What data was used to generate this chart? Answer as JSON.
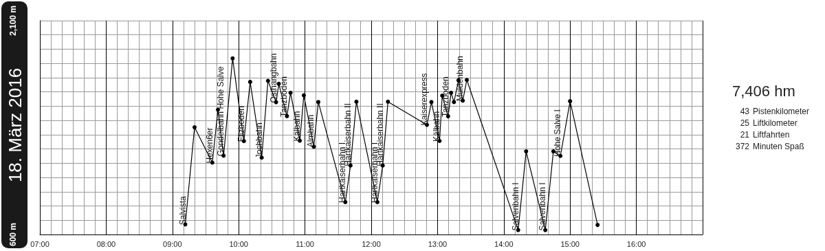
{
  "chart_data": {
    "type": "line",
    "title": "18. März 2016",
    "x": [
      9.194,
      9.334,
      9.602,
      9.687,
      9.772,
      9.908,
      10.078,
      10.173,
      10.347,
      10.442,
      10.564,
      10.605,
      10.728,
      10.782,
      10.922,
      10.983,
      11.133,
      11.201,
      11.609,
      11.687,
      11.776,
      12.092,
      12.173,
      12.252,
      12.84,
      12.908,
      13.031,
      13.071,
      13.16,
      13.204,
      13.248,
      13.316,
      13.381,
      13.442,
      14.217,
      14.337,
      14.626,
      14.748,
      14.854,
      15.0,
      15.415
    ],
    "series": [
      {
        "color": "#000000",
        "values": [
          671,
          1352,
          1104,
          1475,
          1153,
          1835,
          1255,
          1670,
          1139,
          1678,
          1528,
          1657,
          1430,
          1594,
          1258,
          1576,
          1216,
          1529,
          827,
          1084,
          1531,
          827,
          1084,
          1531,
          1369,
          1529,
          1256,
          1574,
          1429,
          1594,
          1529,
          1681,
          1539,
          1684,
          631,
          1183,
          631,
          1183,
          1151,
          1535,
          667
        ]
      }
    ],
    "xlim": [
      7,
      17
    ],
    "xticks": [
      {
        "value": 7,
        "label": "07:00"
      },
      {
        "value": 8,
        "label": "08:00"
      },
      {
        "value": 9,
        "label": "09:00"
      },
      {
        "value": 10,
        "label": "10:00"
      },
      {
        "value": 11,
        "label": "11:00"
      },
      {
        "value": 12,
        "label": "12:00"
      },
      {
        "value": 13,
        "label": "13:00"
      },
      {
        "value": 14,
        "label": "14:00"
      },
      {
        "value": 15,
        "label": "15:00"
      },
      {
        "value": 16,
        "label": "16:00"
      },
      {
        "value": 17,
        "label": null
      }
    ],
    "ylim": [
      600,
      2100
    ],
    "yticks": [
      {
        "value": 600,
        "label": "600 m"
      },
      {
        "value": 700,
        "label": null
      },
      {
        "value": 800,
        "label": null
      },
      {
        "value": 900,
        "label": null
      },
      {
        "value": 1000,
        "label": null
      },
      {
        "value": 1100,
        "label": null
      },
      {
        "value": 1200,
        "label": null
      },
      {
        "value": 1300,
        "label": null
      },
      {
        "value": 1400,
        "label": null
      },
      {
        "value": 1500,
        "label": null
      },
      {
        "value": 1600,
        "label": null
      },
      {
        "value": 1700,
        "label": null
      },
      {
        "value": 1800,
        "label": null
      },
      {
        "value": 1900,
        "label": null
      },
      {
        "value": 2000,
        "label": null
      },
      {
        "value": 2100,
        "label": "2,100 m"
      }
    ],
    "grid": true,
    "marker": "circle",
    "line_style": "solid",
    "annotations": [
      {
        "text": "Salvista",
        "x": 9.194,
        "y": 671
      },
      {
        "text": "Hexen6er",
        "x": 9.602,
        "y": 1104
      },
      {
        "text": "Gondelbahn Hohe Salve",
        "x": 9.772,
        "y": 1153
      },
      {
        "text": "Filzboden",
        "x": 10.078,
        "y": 1255
      },
      {
        "text": "Jochbahn",
        "x": 10.347,
        "y": 1139
      },
      {
        "text": "Osthangbahn",
        "x": 10.564,
        "y": 1528
      },
      {
        "text": "Tanzboden",
        "x": 10.728,
        "y": 1430
      },
      {
        "text": "Kälbahn",
        "x": 10.922,
        "y": 1258
      },
      {
        "text": "Almbahn",
        "x": 11.133,
        "y": 1216
      },
      {
        "text": "Hartkaiserbahn I",
        "x": 11.609,
        "y": 827
      },
      {
        "text": "Hartkaiserbahn II",
        "x": 11.687,
        "y": 1084
      },
      {
        "text": "Hartkaiserbahn I",
        "x": 12.092,
        "y": 827
      },
      {
        "text": "Hartkaiserbahn II",
        "x": 12.173,
        "y": 1084
      },
      {
        "text": "Kaiserexpress",
        "x": 12.84,
        "y": 1369
      },
      {
        "text": "Kälbahn",
        "x": 13.031,
        "y": 1256
      },
      {
        "text": "Tanzboden",
        "x": 13.16,
        "y": 1429
      },
      {
        "text": "Muldenbahn",
        "x": 13.381,
        "y": 1539
      },
      {
        "text": "Salvenbahn I",
        "x": 14.217,
        "y": 631
      },
      {
        "text": "Salvenbahn I",
        "x": 14.626,
        "y": 631
      },
      {
        "text": "Hohe Salve I",
        "x": 14.854,
        "y": 1151
      },
      "7,406 hm",
      "43 Pistenkilometer",
      "25 Liftkilometer",
      "21 Liftfahrten",
      "372 Minuten Spaß"
    ]
  }
}
